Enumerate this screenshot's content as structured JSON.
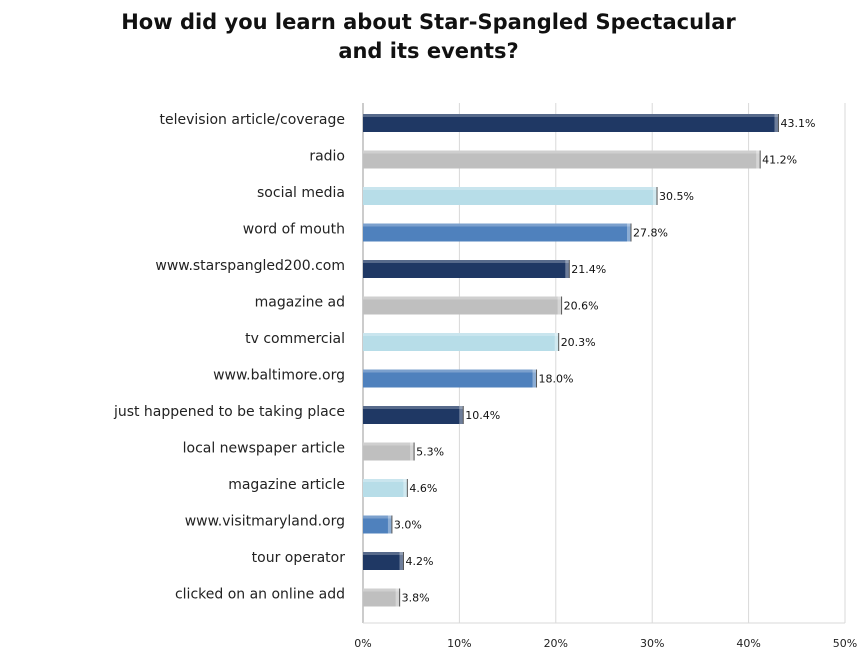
{
  "chart_data": {
    "type": "bar",
    "orientation": "horizontal",
    "title_lines": [
      "How did you learn about Star-Spangled Spectacular",
      "and its events?"
    ],
    "categories": [
      "television article/coverage",
      "radio",
      "social media",
      "word of mouth",
      "www.starspangled200.com",
      "magazine ad",
      "tv commercial",
      "www.baltimore.org",
      "just happened to be taking place",
      "local newspaper article",
      "magazine article",
      "www.visitmaryland.org",
      "tour operator",
      "clicked on an online add"
    ],
    "values": [
      43.1,
      41.2,
      30.5,
      27.8,
      21.4,
      20.6,
      20.3,
      18.0,
      10.4,
      5.3,
      4.6,
      3.0,
      4.2,
      3.8
    ],
    "value_labels": [
      "43.1%",
      "41.2%",
      "30.5%",
      "27.8%",
      "21.4%",
      "20.6%",
      "20.3%",
      "18.0%",
      "10.4%",
      "5.3%",
      "4.6%",
      "3.0%",
      "4.2%",
      "3.8%"
    ],
    "xlim": [
      0,
      50
    ],
    "xticks": [
      "0%",
      "10%",
      "20%",
      "30%",
      "40%",
      "50%"
    ],
    "grid": true,
    "bar_colors": [
      "#1f3864",
      "#bfbfbf",
      "#b7dde8",
      "#4f81bd"
    ]
  }
}
